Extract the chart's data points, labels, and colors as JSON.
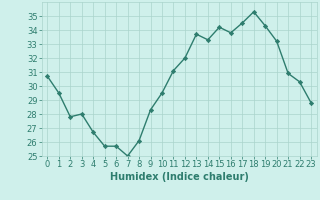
{
  "x": [
    0,
    1,
    2,
    3,
    4,
    5,
    6,
    7,
    8,
    9,
    10,
    11,
    12,
    13,
    14,
    15,
    16,
    17,
    18,
    19,
    20,
    21,
    22,
    23
  ],
  "y": [
    30.7,
    29.5,
    27.8,
    28.0,
    26.7,
    25.7,
    25.7,
    25.0,
    26.1,
    28.3,
    29.5,
    31.1,
    32.0,
    33.7,
    33.3,
    34.2,
    33.8,
    34.5,
    35.3,
    34.3,
    33.2,
    30.9,
    30.3,
    28.8
  ],
  "line_color": "#2e7d6e",
  "marker": "D",
  "markersize": 2.2,
  "bg_color": "#cff0eb",
  "grid_color": "#aad4cc",
  "xlabel": "Humidex (Indice chaleur)",
  "ylim": [
    25,
    36
  ],
  "yticks": [
    25,
    26,
    27,
    28,
    29,
    30,
    31,
    32,
    33,
    34,
    35
  ],
  "xticks": [
    0,
    1,
    2,
    3,
    4,
    5,
    6,
    7,
    8,
    9,
    10,
    11,
    12,
    13,
    14,
    15,
    16,
    17,
    18,
    19,
    20,
    21,
    22,
    23
  ],
  "xlabel_fontsize": 7,
  "tick_fontsize": 6,
  "linewidth": 1.0,
  "tick_color": "#2e7d6e"
}
